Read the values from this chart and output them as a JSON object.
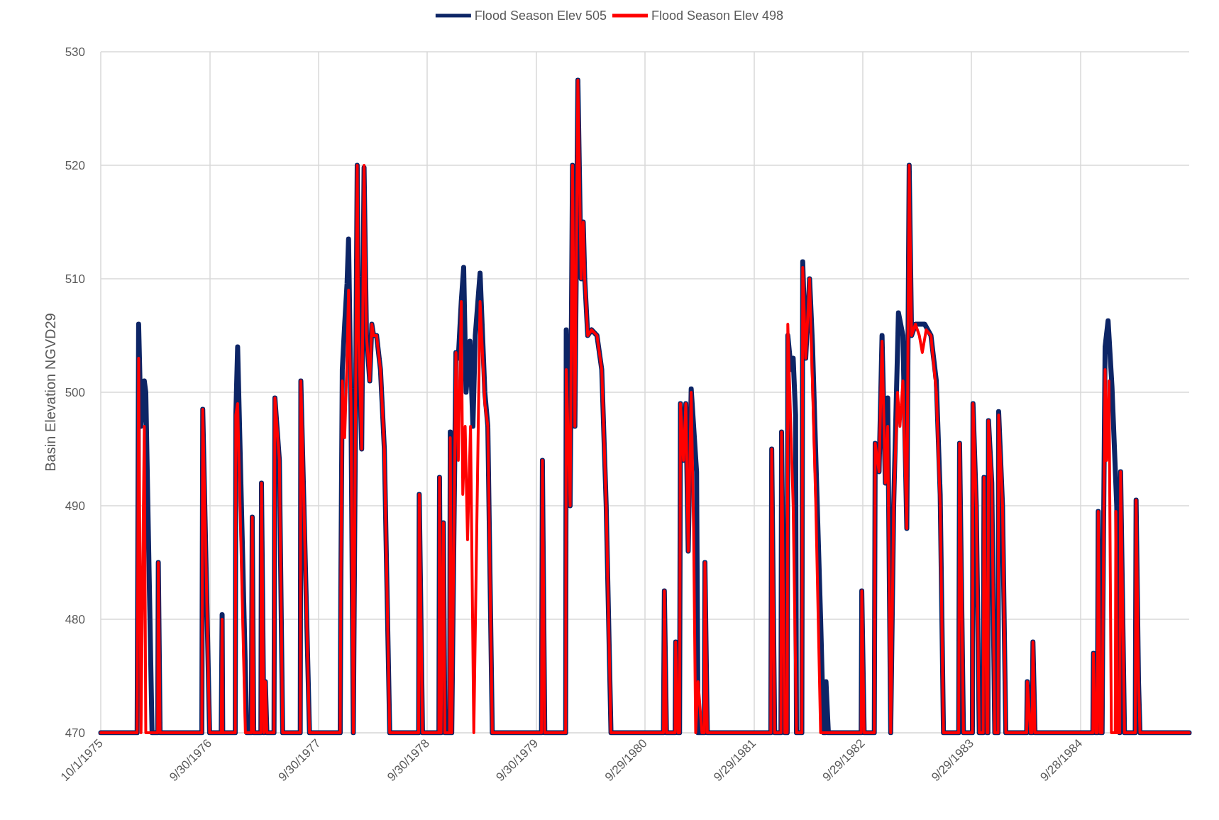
{
  "chart_data": {
    "type": "line",
    "ylabel": "Basin Elevation NGVD29",
    "xlim": [
      "1975-10-01",
      "1985-09-28"
    ],
    "xticks": [
      {
        "value": "1975-10-01",
        "label": "10/1/1975"
      },
      {
        "value": "1976-09-30",
        "label": "9/30/1976"
      },
      {
        "value": "1977-09-30",
        "label": "9/30/1977"
      },
      {
        "value": "1978-09-30",
        "label": "9/30/1978"
      },
      {
        "value": "1979-09-30",
        "label": "9/30/1979"
      },
      {
        "value": "1980-09-29",
        "label": "9/29/1980"
      },
      {
        "value": "1981-09-29",
        "label": "9/29/1981"
      },
      {
        "value": "1982-09-29",
        "label": "9/29/1982"
      },
      {
        "value": "1983-09-29",
        "label": "9/29/1983"
      },
      {
        "value": "1984-09-28",
        "label": "9/28/1984"
      }
    ],
    "ylim": [
      470,
      530
    ],
    "yticks": [
      470,
      480,
      490,
      500,
      510,
      520,
      530
    ],
    "grid": true,
    "legend": "top",
    "marker": "none",
    "line_style": "solid",
    "series": [
      {
        "name": "Flood Season Elev 505",
        "color": "#0d2566",
        "x": [
          "1975-10-01",
          "1976-01-31",
          "1976-02-05",
          "1976-02-13",
          "1976-02-24",
          "1976-02-29",
          "1976-03-21",
          "1976-04-09",
          "1976-04-11",
          "1976-04-17",
          "1976-09-04",
          "1976-09-07",
          "1976-09-30",
          "1976-11-08",
          "1976-11-11",
          "1976-11-13",
          "1976-12-25",
          "1976-12-27",
          "1977-01-02",
          "1977-02-02",
          "1977-02-17",
          "1977-02-20",
          "1977-02-25",
          "1977-03-21",
          "1977-03-23",
          "1977-03-31",
          "1977-04-05",
          "1977-04-10",
          "1977-05-04",
          "1977-05-07",
          "1977-05-22",
          "1977-06-02",
          "1977-07-31",
          "1977-08-02",
          "1977-08-31",
          "1977-12-12",
          "1977-12-14",
          "1977-12-19",
          "1977-12-27",
          "1978-01-04",
          "1978-01-09",
          "1978-01-17",
          "1978-01-25",
          "1978-02-07",
          "1978-02-12",
          "1978-02-22",
          "1978-03-02",
          "1978-03-10",
          "1978-03-21",
          "1978-03-28",
          "1978-04-03",
          "1978-04-13",
          "1978-04-26",
          "1978-05-09",
          "1978-05-27",
          "1978-09-01",
          "1978-09-03",
          "1978-09-14",
          "1978-11-08",
          "1978-11-10",
          "1978-11-15",
          "1978-11-23",
          "1978-11-28",
          "1978-12-14",
          "1978-12-16",
          "1978-12-21",
          "1979-01-04",
          "1979-01-12",
          "1979-01-22",
          "1979-01-30",
          "1979-02-07",
          "1979-02-20",
          "1979-03-02",
          "1979-03-10",
          "1979-03-26",
          "1979-04-11",
          "1979-04-21",
          "1979-05-06",
          "1979-10-18",
          "1979-10-21",
          "1979-10-29",
          "1980-01-07",
          "1980-01-09",
          "1980-01-22",
          "1980-01-30",
          "1980-02-07",
          "1980-02-17",
          "1980-02-28",
          "1980-03-06",
          "1980-03-11",
          "1980-03-21",
          "1980-04-03",
          "1980-04-21",
          "1980-05-07",
          "1980-05-22",
          "1980-06-07",
          "1980-11-30",
          "1980-12-03",
          "1980-12-10",
          "1981-01-08",
          "1981-01-10",
          "1981-01-18",
          "1981-01-23",
          "1981-01-26",
          "1981-02-05",
          "1981-02-13",
          "1981-02-21",
          "1981-03-03",
          "1981-03-21",
          "1981-03-26",
          "1981-04-08",
          "1981-04-16",
          "1981-04-18",
          "1981-04-26",
          "1981-11-25",
          "1981-11-28",
          "1981-12-08",
          "1981-12-29",
          "1981-12-31",
          "1982-01-11",
          "1982-01-19",
          "1982-01-21",
          "1982-02-01",
          "1982-02-08",
          "1982-02-16",
          "1982-02-19",
          "1982-03-09",
          "1982-03-12",
          "1982-03-22",
          "1982-04-04",
          "1982-04-14",
          "1982-05-11",
          "1982-05-21",
          "1982-05-27",
          "1982-05-29",
          "1982-06-06",
          "1982-09-24",
          "1982-09-26",
          "1982-10-04",
          "1982-11-07",
          "1982-11-10",
          "1982-11-23",
          "1982-12-03",
          "1982-12-14",
          "1982-12-22",
          "1983-01-01",
          "1983-01-11",
          "1983-01-27",
          "1983-02-11",
          "1983-02-24",
          "1983-03-04",
          "1983-03-12",
          "1983-03-25",
          "1983-04-25",
          "1983-05-16",
          "1983-06-03",
          "1983-06-16",
          "1983-06-27",
          "1983-08-17",
          "1983-08-20",
          "1983-09-02",
          "1983-10-02",
          "1983-10-04",
          "1983-10-15",
          "1983-10-25",
          "1983-11-07",
          "1983-11-10",
          "1983-11-20",
          "1983-11-23",
          "1983-11-25",
          "1983-12-06",
          "1983-12-16",
          "1983-12-27",
          "1983-12-29",
          "1984-01-11",
          "1984-01-22",
          "1984-04-01",
          "1984-04-03",
          "1984-04-14",
          "1984-04-19",
          "1984-04-22",
          "1984-04-29",
          "1984-11-09",
          "1984-11-11",
          "1984-11-19",
          "1984-11-24",
          "1984-11-27",
          "1984-12-04",
          "1984-12-10",
          "1984-12-12",
          "1984-12-20",
          "1984-12-30",
          "1985-01-12",
          "1985-01-28",
          "1985-02-07",
          "1985-02-10",
          "1985-02-23",
          "1985-03-31",
          "1985-04-03",
          "1985-04-11",
          "1985-04-16",
          "1985-09-28"
        ],
        "values": [
          470,
          470,
          506,
          497,
          501,
          500,
          470,
          470,
          485,
          470,
          470,
          498.5,
          470,
          470,
          480.4,
          470,
          470,
          498,
          504,
          470,
          470,
          489,
          470,
          470,
          492,
          470,
          474.5,
          470,
          470,
          499.5,
          494,
          470,
          470,
          501,
          470,
          470,
          482.5,
          502,
          506,
          509.6,
          513.5,
          499,
          470,
          520,
          505,
          495,
          519.8,
          505,
          501,
          506,
          505,
          505,
          502,
          495,
          470,
          470,
          491,
          470,
          470,
          492.5,
          470,
          488.5,
          470,
          470,
          496.5,
          470,
          503.5,
          503,
          508,
          511,
          500,
          504.5,
          497,
          505,
          510.5,
          500,
          497,
          470,
          470,
          494,
          470,
          470,
          505.5,
          490,
          520,
          497,
          527.5,
          510,
          515,
          510,
          505,
          505.5,
          505,
          502,
          490,
          470,
          470,
          482.5,
          470,
          470,
          478,
          470,
          470,
          499,
          494,
          499,
          486,
          500.3,
          493,
          470,
          470,
          470,
          485,
          470,
          470,
          495,
          470,
          470,
          496.5,
          470,
          470,
          505,
          502,
          503,
          498,
          470,
          470,
          511.5,
          503,
          510,
          504,
          480,
          470,
          470,
          474.5,
          470,
          470,
          482.5,
          470,
          470,
          495.5,
          493,
          505,
          492,
          499.5,
          470,
          490,
          507,
          505,
          488,
          520,
          505,
          506,
          506,
          505,
          501,
          491,
          470,
          470,
          495.5,
          470,
          470,
          499,
          490,
          470,
          470,
          492.5,
          470,
          470,
          497.5,
          492,
          470,
          470,
          498.3,
          490,
          470,
          470,
          474.5,
          470,
          470,
          478,
          470,
          470,
          477,
          470,
          470,
          489.5,
          470,
          470,
          479,
          504,
          506.3,
          500.5,
          490,
          470,
          493,
          470,
          470,
          490.5,
          474.5,
          470,
          470
        ]
      },
      {
        "name": "Flood Season Elev 498",
        "color": "#ff0000",
        "x": [
          "1975-10-01",
          "1976-01-31",
          "1976-02-05",
          "1976-02-13",
          "1976-02-24",
          "1976-02-29",
          "1976-04-09",
          "1976-04-11",
          "1976-04-17",
          "1976-09-04",
          "1976-09-07",
          "1976-09-30",
          "1976-11-08",
          "1976-11-11",
          "1976-11-13",
          "1976-12-25",
          "1976-12-27",
          "1977-01-02",
          "1977-01-28",
          "1977-02-17",
          "1977-02-20",
          "1977-02-25",
          "1977-03-21",
          "1977-03-23",
          "1977-03-31",
          "1977-04-05",
          "1977-04-10",
          "1977-05-04",
          "1977-05-07",
          "1977-05-22",
          "1977-06-02",
          "1977-07-31",
          "1977-08-02",
          "1977-08-31",
          "1977-12-12",
          "1977-12-14",
          "1977-12-19",
          "1977-12-27",
          "1978-01-04",
          "1978-01-09",
          "1978-01-17",
          "1978-01-25",
          "1978-02-07",
          "1978-02-12",
          "1978-02-22",
          "1978-03-02",
          "1978-03-10",
          "1978-03-21",
          "1978-03-28",
          "1978-04-03",
          "1978-04-13",
          "1978-04-26",
          "1978-05-09",
          "1978-05-27",
          "1978-09-01",
          "1978-09-03",
          "1978-09-14",
          "1978-11-08",
          "1978-11-10",
          "1978-11-15",
          "1978-11-23",
          "1978-11-28",
          "1978-12-14",
          "1978-12-16",
          "1978-12-21",
          "1979-01-04",
          "1979-01-12",
          "1979-01-22",
          "1979-01-27",
          "1979-02-04",
          "1979-02-12",
          "1979-02-22",
          "1979-03-05",
          "1979-03-26",
          "1979-04-11",
          "1979-04-21",
          "1979-05-06",
          "1979-10-18",
          "1979-10-21",
          "1979-10-29",
          "1980-01-07",
          "1980-01-09",
          "1980-01-22",
          "1980-01-30",
          "1980-02-07",
          "1980-02-17",
          "1980-02-28",
          "1980-03-06",
          "1980-03-11",
          "1980-03-21",
          "1980-04-03",
          "1980-04-21",
          "1980-05-07",
          "1980-05-22",
          "1980-06-07",
          "1980-11-30",
          "1980-12-03",
          "1980-12-10",
          "1981-01-08",
          "1981-01-10",
          "1981-01-18",
          "1981-01-23",
          "1981-01-26",
          "1981-02-05",
          "1981-02-13",
          "1981-02-21",
          "1981-03-03",
          "1981-03-11",
          "1981-03-18",
          "1981-03-26",
          "1981-04-08",
          "1981-04-16",
          "1981-04-18",
          "1981-04-26",
          "1981-11-25",
          "1981-11-28",
          "1981-12-08",
          "1981-12-29",
          "1981-12-31",
          "1982-01-11",
          "1982-01-19",
          "1982-01-21",
          "1982-02-01",
          "1982-02-08",
          "1982-02-19",
          "1982-03-09",
          "1982-03-12",
          "1982-03-22",
          "1982-04-04",
          "1982-04-25",
          "1982-05-11",
          "1982-09-24",
          "1982-09-26",
          "1982-10-04",
          "1982-11-07",
          "1982-11-10",
          "1982-11-23",
          "1982-12-03",
          "1982-12-14",
          "1982-12-22",
          "1983-01-01",
          "1983-01-11",
          "1983-01-24",
          "1983-02-01",
          "1983-02-11",
          "1983-02-24",
          "1983-03-04",
          "1983-03-12",
          "1983-03-25",
          "1983-04-07",
          "1983-04-17",
          "1983-04-30",
          "1983-05-16",
          "1983-06-03",
          "1983-06-16",
          "1983-06-27",
          "1983-08-17",
          "1983-08-20",
          "1983-09-02",
          "1983-10-02",
          "1983-10-04",
          "1983-10-15",
          "1983-10-25",
          "1983-11-07",
          "1983-11-10",
          "1983-11-20",
          "1983-11-23",
          "1983-11-25",
          "1983-12-06",
          "1983-12-16",
          "1983-12-27",
          "1983-12-29",
          "1984-01-11",
          "1984-01-22",
          "1984-04-01",
          "1984-04-03",
          "1984-04-14",
          "1984-04-19",
          "1984-04-22",
          "1984-04-29",
          "1984-11-09",
          "1984-11-11",
          "1984-11-19",
          "1984-11-24",
          "1984-11-27",
          "1984-12-04",
          "1984-12-10",
          "1984-12-12",
          "1984-12-20",
          "1984-12-25",
          "1985-01-02",
          "1985-01-10",
          "1985-01-23",
          "1985-01-25",
          "1985-01-30",
          "1985-02-07",
          "1985-02-10",
          "1985-02-23",
          "1985-03-31",
          "1985-04-03",
          "1985-04-11",
          "1985-04-16",
          "1985-09-28"
        ],
        "values": [
          470,
          470,
          503,
          470,
          497,
          470,
          470,
          485,
          470,
          470,
          498.5,
          470,
          470,
          480,
          470,
          470,
          498,
          499,
          470,
          470,
          489,
          470,
          470,
          492,
          470,
          474.5,
          470,
          470,
          499.5,
          494,
          470,
          470,
          501,
          470,
          470,
          482.5,
          501,
          496,
          503,
          509,
          499,
          470,
          520,
          505,
          495,
          520,
          505,
          501,
          506,
          505,
          505,
          502,
          495,
          470,
          470,
          491,
          470,
          470,
          492.5,
          470,
          488.5,
          470,
          470,
          496,
          470,
          503.5,
          494,
          508,
          491,
          497,
          487,
          497,
          470,
          508,
          499,
          497,
          470,
          470,
          494,
          470,
          470,
          502,
          490,
          520,
          497,
          527.5,
          510,
          515,
          510,
          505,
          505.5,
          505,
          502,
          490,
          470,
          470,
          482.5,
          470,
          470,
          478,
          470,
          470,
          499,
          494,
          499,
          486,
          500,
          488,
          470,
          474.5,
          470,
          470,
          485,
          470,
          470,
          495,
          470,
          470,
          496.5,
          470,
          470,
          506,
          496,
          490,
          470,
          470,
          511,
          503,
          510,
          490,
          470,
          470,
          482.5,
          470,
          470,
          495.5,
          493,
          504.5,
          492,
          497,
          470,
          490,
          500,
          497,
          501,
          488,
          520,
          505,
          506,
          505,
          503.5,
          505.5,
          505,
          500,
          490,
          470,
          470,
          495.5,
          470,
          470,
          499,
          490,
          470,
          470,
          492.5,
          470,
          470,
          497.5,
          492,
          470,
          470,
          498,
          490,
          470,
          470,
          474.5,
          470,
          470,
          478,
          470,
          470,
          477,
          470,
          470,
          489.5,
          470,
          470,
          477,
          502,
          494,
          501,
          470,
          470,
          489.5,
          470,
          470,
          493,
          470,
          470,
          490.5,
          474.5,
          470,
          470
        ]
      }
    ]
  }
}
